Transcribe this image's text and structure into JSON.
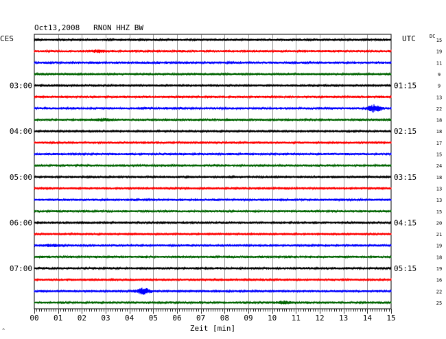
{
  "header": {
    "title": "Oct13,2008   RNON HHZ BW",
    "left_timezone": "CES",
    "right_timezone": "UTC",
    "dc_label": "DC",
    "corner_mark": "^"
  },
  "colors": {
    "black": "#000000",
    "red": "#ff0000",
    "blue": "#0000ff",
    "green": "#006400",
    "grid": "#000000"
  },
  "chart_data": {
    "type": "line",
    "title": "Oct13,2008   RNON HHZ BW",
    "xlabel": "Zeit [min]",
    "ylabel": "",
    "xlim": [
      0,
      15
    ],
    "x_ticks": [
      "00",
      "01",
      "02",
      "03",
      "04",
      "05",
      "06",
      "07",
      "08",
      "09",
      "10",
      "11",
      "12",
      "13",
      "14",
      "15"
    ],
    "trace_colors": [
      "black",
      "red",
      "blue",
      "green"
    ],
    "left_time_labels": [
      {
        "trace": 4,
        "text": "03:00"
      },
      {
        "trace": 8,
        "text": "04:00"
      },
      {
        "trace": 12,
        "text": "05:00"
      },
      {
        "trace": 16,
        "text": "06:00"
      },
      {
        "trace": 20,
        "text": "07:00"
      }
    ],
    "right_time_labels": [
      {
        "trace": 4,
        "text": "01:15"
      },
      {
        "trace": 8,
        "text": "02:15"
      },
      {
        "trace": 12,
        "text": "03:15"
      },
      {
        "trace": 16,
        "text": "04:15"
      },
      {
        "trace": 20,
        "text": "05:15"
      }
    ],
    "dc_values": [
      "15",
      "19",
      "11",
      "9",
      "9",
      "13",
      "22",
      "18",
      "18",
      "17",
      "15",
      "24",
      "18",
      "13",
      "13",
      "15",
      "20",
      "21",
      "19",
      "18",
      "19",
      "16",
      "22",
      "25"
    ],
    "traces": 24,
    "events": [
      {
        "trace": 1,
        "minute": 2.7,
        "strength": 1.6
      },
      {
        "trace": 6,
        "minute": 14.3,
        "strength": 5
      },
      {
        "trace": 7,
        "minute": 2.9,
        "strength": 1.5
      },
      {
        "trace": 18,
        "minute": 0.8,
        "strength": 1.3
      },
      {
        "trace": 22,
        "minute": 4.6,
        "strength": 4
      },
      {
        "trace": 23,
        "minute": 10.5,
        "strength": 1.5
      }
    ]
  }
}
